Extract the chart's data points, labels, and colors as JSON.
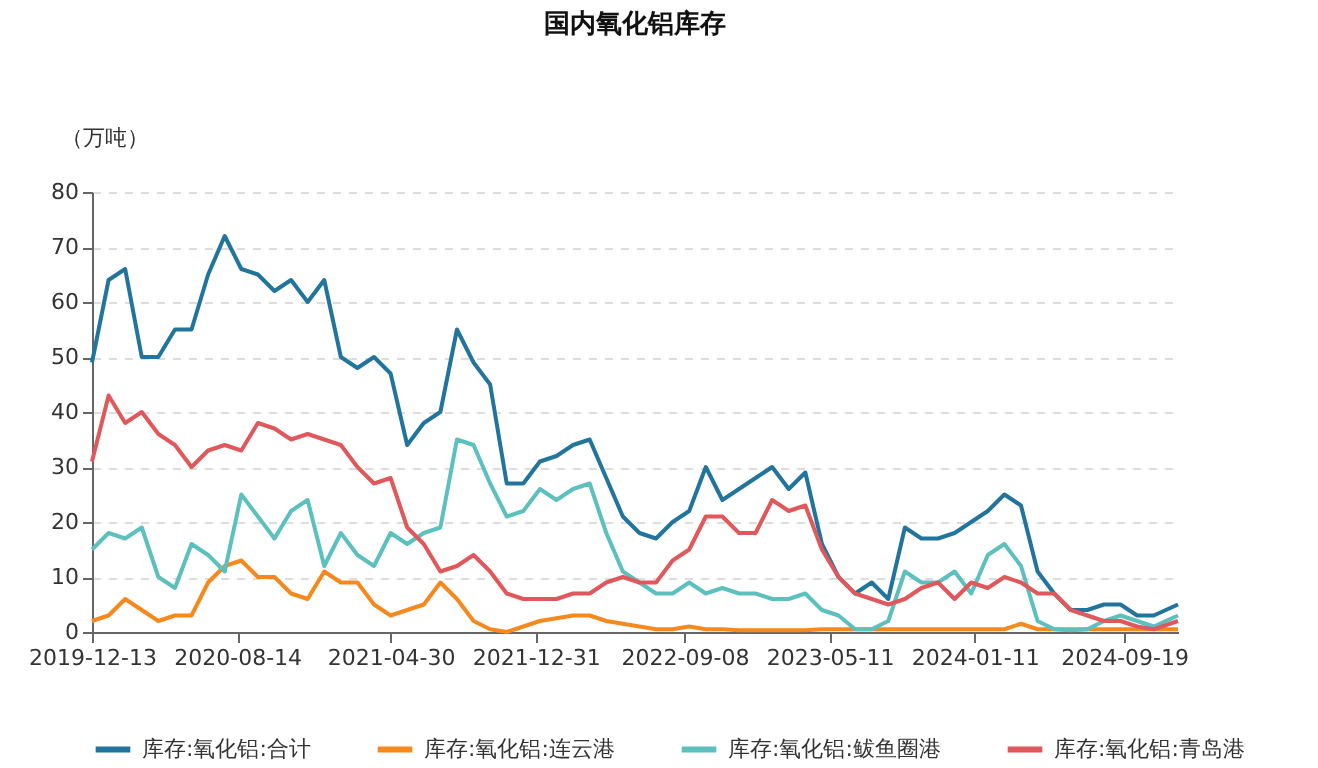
{
  "chart_data": {
    "type": "line",
    "title": "国内氧化铝库存",
    "ylabel": "（万吨）",
    "x": [
      "2019-12-13",
      "2020-01-10",
      "2020-02-07",
      "2020-03-06",
      "2020-04-03",
      "2020-05-01",
      "2020-05-29",
      "2020-06-26",
      "2020-07-24",
      "2020-08-21",
      "2020-09-18",
      "2020-10-16",
      "2020-11-13",
      "2020-12-11",
      "2021-01-08",
      "2021-02-05",
      "2021-03-05",
      "2021-04-02",
      "2021-04-30",
      "2021-05-28",
      "2021-06-25",
      "2021-07-23",
      "2021-08-20",
      "2021-09-17",
      "2021-10-15",
      "2021-11-12",
      "2021-12-10",
      "2022-01-07",
      "2022-02-04",
      "2022-03-04",
      "2022-04-01",
      "2022-04-29",
      "2022-05-27",
      "2022-06-24",
      "2022-07-22",
      "2022-08-19",
      "2022-09-16",
      "2022-10-14",
      "2022-11-11",
      "2022-12-09",
      "2023-01-06",
      "2023-02-03",
      "2023-03-03",
      "2023-03-31",
      "2023-04-28",
      "2023-05-26",
      "2023-06-23",
      "2023-07-21",
      "2023-08-18",
      "2023-09-15",
      "2023-10-13",
      "2023-11-10",
      "2023-12-08",
      "2024-01-05",
      "2024-02-02",
      "2024-03-01",
      "2024-03-29",
      "2024-04-26",
      "2024-05-24",
      "2024-06-21",
      "2024-07-19",
      "2024-08-16",
      "2024-09-13",
      "2024-10-11",
      "2024-11-08",
      "2024-12-19"
    ],
    "series": [
      {
        "name": "库存:氧化铝:合计",
        "color": "#21749b",
        "values": [
          49,
          64,
          66,
          50,
          50,
          55,
          55,
          65,
          72,
          66,
          65,
          62,
          64,
          60,
          64,
          50,
          48,
          50,
          47,
          34,
          38,
          40,
          55,
          49,
          45,
          27,
          27,
          31,
          32,
          34,
          35,
          28,
          21,
          18,
          17,
          20,
          22,
          30,
          24,
          26,
          28,
          30,
          26,
          29,
          16,
          10,
          7,
          9,
          6,
          19,
          17,
          17,
          18,
          20,
          22,
          25,
          23,
          11,
          7,
          4,
          4,
          5,
          5,
          3,
          3,
          5
        ]
      },
      {
        "name": "库存:氧化铝:连云港",
        "color": "#f5891e",
        "values": [
          2,
          3,
          6,
          4,
          2,
          3,
          3,
          9,
          12,
          13,
          10,
          10,
          7,
          6,
          11,
          9,
          9,
          5,
          3,
          4,
          5,
          9,
          6,
          2,
          0.5,
          0,
          1,
          2,
          2.5,
          3,
          3,
          2,
          1.5,
          1,
          0.5,
          0.5,
          1,
          0.5,
          0.5,
          0.3,
          0.3,
          0.3,
          0.3,
          0.3,
          0.5,
          0.5,
          0.5,
          0.5,
          0.5,
          0.5,
          0.5,
          0.5,
          0.5,
          0.5,
          0.5,
          0.5,
          1.5,
          0.5,
          0.5,
          0.5,
          0.5,
          0.5,
          0.5,
          0.5,
          0.5,
          0.5
        ]
      },
      {
        "name": "库存:氧化铝:鲅鱼圈港",
        "color": "#5bc0be",
        "values": [
          15,
          18,
          17,
          19,
          10,
          8,
          16,
          14,
          11,
          25,
          21,
          17,
          22,
          24,
          12,
          18,
          14,
          12,
          18,
          16,
          18,
          19,
          35,
          34,
          27,
          21,
          22,
          26,
          24,
          26,
          27,
          18,
          11,
          9,
          7,
          7,
          9,
          7,
          8,
          7,
          7,
          6,
          6,
          7,
          4,
          3,
          0.5,
          0.5,
          2,
          11,
          9,
          9,
          11,
          7,
          14,
          16,
          12,
          2,
          0.5,
          0.3,
          0.5,
          2,
          3,
          2,
          1,
          3
        ]
      },
      {
        "name": "库存:氧化铝:青岛港",
        "color": "#e0585b",
        "values": [
          31,
          43,
          38,
          40,
          36,
          34,
          30,
          33,
          34,
          33,
          38,
          37,
          35,
          36,
          35,
          34,
          30,
          27,
          28,
          19,
          16,
          11,
          12,
          14,
          11,
          7,
          6,
          6,
          6,
          7,
          7,
          9,
          10,
          9,
          9,
          13,
          15,
          21,
          21,
          18,
          18,
          24,
          22,
          23,
          15,
          10,
          7,
          6,
          5,
          6,
          8,
          9,
          6,
          9,
          8,
          10,
          9,
          7,
          7,
          4,
          3,
          2,
          2,
          1,
          0.5,
          2
        ]
      }
    ],
    "ylim": [
      0,
      80
    ],
    "yticks": [
      0,
      10,
      20,
      30,
      40,
      50,
      60,
      70,
      80
    ],
    "xlim": [
      "2019-12-13",
      "2024-12-19"
    ],
    "xticks": [
      {
        "value": "2019-12-13",
        "label": "2019-12-13"
      },
      {
        "value": "2020-08-14",
        "label": "2020-08-14"
      },
      {
        "value": "2021-04-30",
        "label": "2021-04-30"
      },
      {
        "value": "2021-12-31",
        "label": "2021-12-31"
      },
      {
        "value": "2022-09-08",
        "label": "2022-09-08"
      },
      {
        "value": "2023-05-11",
        "label": "2023-05-11"
      },
      {
        "value": "2024-01-11",
        "label": "2024-01-11"
      },
      {
        "value": "2024-09-19",
        "label": "2024-09-19"
      }
    ],
    "grid": "y",
    "legend": "bottom"
  }
}
